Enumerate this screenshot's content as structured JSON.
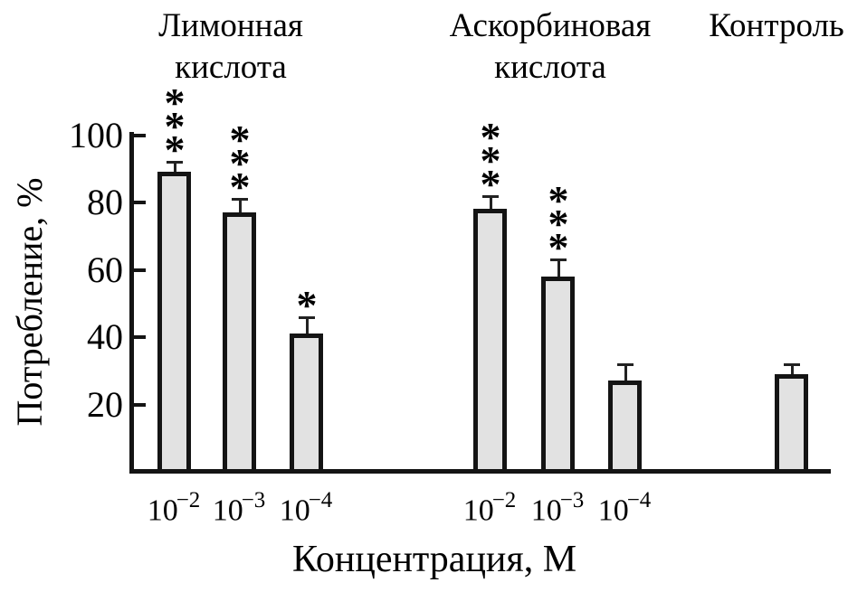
{
  "colors": {
    "bar_fill": "#e2e2e2",
    "bar_border": "#141414",
    "axis": "#141414",
    "text": "#000000",
    "background": "#ffffff"
  },
  "chart_data": {
    "type": "bar",
    "title": "",
    "ylabel": "Потребление, %",
    "xlabel": "Концентрация, М",
    "ylim": [
      0,
      100
    ],
    "yticks": [
      20,
      40,
      60,
      80,
      100
    ],
    "grid": false,
    "legend": null,
    "error_bars": "plus_direction_only",
    "groups": [
      {
        "name": "Лимонная кислота",
        "title_lines": [
          "Лимонная",
          "кислота"
        ],
        "bars": [
          {
            "tick_base": "10",
            "tick_exp": "−2",
            "concentration_label": "10^-2",
            "value": 89,
            "error_plus": 3,
            "significance": "***"
          },
          {
            "tick_base": "10",
            "tick_exp": "−3",
            "concentration_label": "10^-3",
            "value": 77,
            "error_plus": 4,
            "significance": "***"
          },
          {
            "tick_base": "10",
            "tick_exp": "−4",
            "concentration_label": "10^-4",
            "value": 41,
            "error_plus": 5,
            "significance": "*"
          }
        ]
      },
      {
        "name": "Аскорбиновая кислота",
        "title_lines": [
          "Аскорбиновая",
          "кислота"
        ],
        "bars": [
          {
            "tick_base": "10",
            "tick_exp": "−2",
            "concentration_label": "10^-2",
            "value": 78,
            "error_plus": 4,
            "significance": "***"
          },
          {
            "tick_base": "10",
            "tick_exp": "−3",
            "concentration_label": "10^-3",
            "value": 58,
            "error_plus": 5,
            "significance": "***"
          },
          {
            "tick_base": "10",
            "tick_exp": "−4",
            "concentration_label": "10^-4",
            "value": 27,
            "error_plus": 5,
            "significance": ""
          }
        ]
      },
      {
        "name": "Контроль",
        "title_lines": [
          "Контроль"
        ],
        "bars": [
          {
            "tick_base": "",
            "tick_exp": "",
            "concentration_label": "",
            "value": 29,
            "error_plus": 3,
            "significance": ""
          }
        ]
      }
    ]
  }
}
